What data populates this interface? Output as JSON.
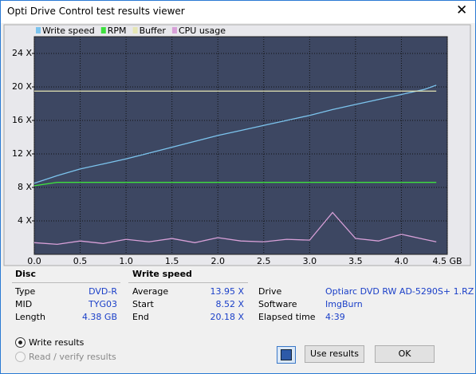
{
  "window_title": "Opti Drive Control test results viewer",
  "chart_data": {
    "type": "line",
    "x": [
      0,
      0.25,
      0.5,
      0.75,
      1.0,
      1.25,
      1.5,
      1.75,
      2.0,
      2.25,
      2.5,
      2.75,
      3.0,
      3.25,
      3.5,
      3.75,
      4.0,
      4.25,
      4.38
    ],
    "series": [
      {
        "name": "Write speed",
        "color": "#7cc4ee",
        "values": [
          8.5,
          9.4,
          10.2,
          10.8,
          11.4,
          12.1,
          12.8,
          13.5,
          14.2,
          14.8,
          15.4,
          16.0,
          16.6,
          17.3,
          17.9,
          18.5,
          19.1,
          19.7,
          20.2
        ]
      },
      {
        "name": "RPM",
        "color": "#3ee03e",
        "values": [
          8.2,
          8.6,
          8.6,
          8.6,
          8.6,
          8.6,
          8.6,
          8.6,
          8.6,
          8.6,
          8.6,
          8.6,
          8.6,
          8.6,
          8.6,
          8.6,
          8.6,
          8.6,
          8.6
        ]
      },
      {
        "name": "Buffer",
        "color": "#e6e6b4",
        "values": [
          19.5,
          19.5,
          19.5,
          19.5,
          19.5,
          19.5,
          19.5,
          19.5,
          19.5,
          19.5,
          19.5,
          19.5,
          19.5,
          19.5,
          19.5,
          19.5,
          19.5,
          19.5,
          19.5
        ]
      },
      {
        "name": "CPU usage",
        "color": "#d8a0d8",
        "values": [
          1.4,
          1.2,
          1.6,
          1.3,
          1.8,
          1.5,
          1.9,
          1.4,
          2.0,
          1.6,
          1.5,
          1.8,
          1.7,
          5.0,
          1.9,
          1.6,
          2.4,
          1.8,
          1.5
        ]
      }
    ],
    "xlim": [
      0,
      4.5
    ],
    "ylim": [
      0,
      26
    ],
    "xticks": [
      {
        "value": 0,
        "label": "0.0"
      },
      0.5,
      {
        "value": 1,
        "label": "1.0"
      },
      1.5,
      {
        "value": 2,
        "label": "2.0"
      },
      2.5,
      {
        "value": 3,
        "label": "3.0"
      },
      3.5,
      {
        "value": 4,
        "label": "4.0"
      },
      {
        "value": 4.5,
        "label": "4.5 GB"
      }
    ],
    "yticks": [
      {
        "value": 4,
        "label": "4 X"
      },
      {
        "value": 8,
        "label": "8 X"
      },
      {
        "value": 12,
        "label": "12 X"
      },
      {
        "value": 16,
        "label": "16 X"
      },
      {
        "value": 20,
        "label": "20 X"
      },
      {
        "value": 24,
        "label": "24 X"
      }
    ],
    "grid": true
  },
  "disc": {
    "heading": "Disc",
    "rows": [
      [
        "Type",
        "DVD-R"
      ],
      [
        "MID",
        "TYG03"
      ],
      [
        "Length",
        "4.38 GB"
      ]
    ]
  },
  "write_speed": {
    "heading": "Write speed",
    "rows": [
      [
        "Average",
        "13.95 X"
      ],
      [
        "Start",
        "8.52 X"
      ],
      [
        "End",
        "20.18 X"
      ]
    ]
  },
  "drive_info": {
    "rows": [
      [
        "Drive",
        "Optiarc  DVD RW AD-5290S+ 1.RZ"
      ],
      [
        "Software",
        "ImgBurn"
      ],
      [
        "Elapsed time",
        "4:39"
      ]
    ]
  },
  "options": [
    "Write results",
    "Read / verify results"
  ],
  "buttons": {
    "use": "Use results",
    "ok": "OK"
  }
}
